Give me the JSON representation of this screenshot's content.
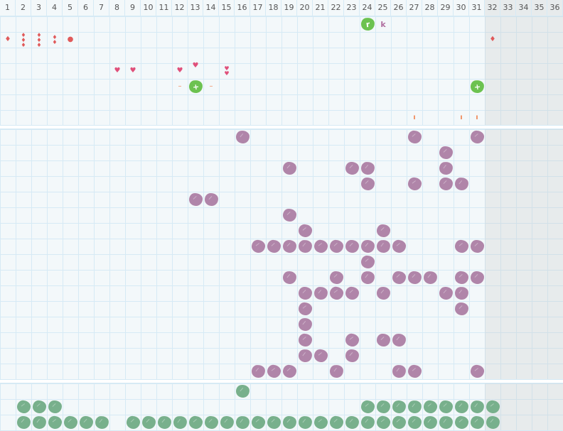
{
  "columns": [
    "1",
    "2",
    "3",
    "4",
    "5",
    "6",
    "7",
    "8",
    "9",
    "10",
    "11",
    "12",
    "13",
    "14",
    "15",
    "16",
    "17",
    "18",
    "19",
    "20",
    "21",
    "22",
    "23",
    "24",
    "25",
    "26",
    "27",
    "28",
    "29",
    "30",
    "31",
    "32",
    "33",
    "34",
    "35",
    "36"
  ],
  "disabled_from_column": 32,
  "colors": {
    "grid": "#d6eaf5",
    "background": "#f3f8fa",
    "purple_block": "#b085a9",
    "green_block": "#78b08c",
    "bright_green": "#6cc250",
    "drop": "#e05a5a",
    "heart": "#e0507a",
    "dash": "#f08a5a",
    "letter": "#b06fa0"
  },
  "top_items": [
    {
      "row": 1,
      "col": 24,
      "type": "green-block",
      "label": "r"
    },
    {
      "row": 1,
      "col": 25,
      "type": "letter",
      "label": "k"
    },
    {
      "row": 2,
      "col": 1,
      "type": "drop",
      "label": "♦"
    },
    {
      "row": 2,
      "col": 2,
      "type": "drops",
      "label": "♦♦♦"
    },
    {
      "row": 2,
      "col": 3,
      "type": "drops",
      "label": "♦♦♦"
    },
    {
      "row": 2,
      "col": 4,
      "type": "drops",
      "label": "♦♦"
    },
    {
      "row": 2,
      "col": 5,
      "type": "dot",
      "label": "●"
    },
    {
      "row": 2,
      "col": 32,
      "type": "drop",
      "label": "♦"
    },
    {
      "row": 4,
      "col": 8,
      "type": "heart",
      "label": "♥"
    },
    {
      "row": 4,
      "col": 9,
      "type": "heart",
      "label": "♥"
    },
    {
      "row": 4,
      "col": 12,
      "type": "heart",
      "label": "♥"
    },
    {
      "row": 4,
      "col": 13,
      "type": "heart",
      "label": "♥"
    },
    {
      "row": 4,
      "col": 15,
      "type": "heart",
      "label": "♥♥"
    },
    {
      "row": 5,
      "col": 12,
      "type": "dash",
      "label": "–"
    },
    {
      "row": 5,
      "col": 13,
      "type": "green-block",
      "label": "+"
    },
    {
      "row": 5,
      "col": 14,
      "type": "dash",
      "label": "–"
    },
    {
      "row": 5,
      "col": 31,
      "type": "green-block",
      "label": "+"
    },
    {
      "row": 7,
      "col": 27,
      "type": "tick",
      "label": "ı"
    },
    {
      "row": 7,
      "col": 30,
      "type": "tick",
      "label": "ı"
    },
    {
      "row": 7,
      "col": 31,
      "type": "tick",
      "label": "ı"
    }
  ],
  "middle_blocks": [
    [
      0,
      16
    ],
    [
      0,
      27
    ],
    [
      0,
      31
    ],
    [
      1,
      29
    ],
    [
      2,
      19
    ],
    [
      2,
      23
    ],
    [
      2,
      24
    ],
    [
      2,
      29
    ],
    [
      3,
      24
    ],
    [
      3,
      27
    ],
    [
      3,
      29
    ],
    [
      3,
      30
    ],
    [
      4,
      13
    ],
    [
      4,
      14
    ],
    [
      5,
      19
    ],
    [
      6,
      20
    ],
    [
      6,
      25
    ],
    [
      7,
      17
    ],
    [
      7,
      18
    ],
    [
      7,
      19
    ],
    [
      7,
      20
    ],
    [
      7,
      21
    ],
    [
      7,
      22
    ],
    [
      7,
      23
    ],
    [
      7,
      24
    ],
    [
      7,
      25
    ],
    [
      7,
      26
    ],
    [
      7,
      30
    ],
    [
      7,
      31
    ],
    [
      8,
      24
    ],
    [
      9,
      19
    ],
    [
      9,
      22
    ],
    [
      9,
      24
    ],
    [
      9,
      26
    ],
    [
      9,
      27
    ],
    [
      9,
      28
    ],
    [
      9,
      30
    ],
    [
      9,
      31
    ],
    [
      10,
      20
    ],
    [
      10,
      21
    ],
    [
      10,
      22
    ],
    [
      10,
      23
    ],
    [
      10,
      25
    ],
    [
      10,
      29
    ],
    [
      10,
      30
    ],
    [
      11,
      20
    ],
    [
      11,
      30
    ],
    [
      12,
      20
    ],
    [
      13,
      20
    ],
    [
      13,
      23
    ],
    [
      13,
      25
    ],
    [
      13,
      26
    ],
    [
      14,
      20
    ],
    [
      14,
      21
    ],
    [
      14,
      23
    ],
    [
      15,
      17
    ],
    [
      15,
      18
    ],
    [
      15,
      19
    ],
    [
      15,
      22
    ],
    [
      15,
      26
    ],
    [
      15,
      27
    ],
    [
      15,
      31
    ]
  ],
  "bottom_blocks": [
    [
      0,
      16
    ],
    [
      1,
      2
    ],
    [
      1,
      3
    ],
    [
      1,
      4
    ],
    [
      1,
      24
    ],
    [
      1,
      25
    ],
    [
      1,
      26
    ],
    [
      1,
      27
    ],
    [
      1,
      28
    ],
    [
      1,
      29
    ],
    [
      1,
      30
    ],
    [
      1,
      31
    ],
    [
      1,
      32
    ],
    [
      2,
      2
    ],
    [
      2,
      3
    ],
    [
      2,
      4
    ],
    [
      2,
      5
    ],
    [
      2,
      6
    ],
    [
      2,
      7
    ],
    [
      2,
      9
    ],
    [
      2,
      10
    ],
    [
      2,
      11
    ],
    [
      2,
      12
    ],
    [
      2,
      13
    ],
    [
      2,
      14
    ],
    [
      2,
      15
    ],
    [
      2,
      16
    ],
    [
      2,
      17
    ],
    [
      2,
      18
    ],
    [
      2,
      19
    ],
    [
      2,
      20
    ],
    [
      2,
      21
    ],
    [
      2,
      22
    ],
    [
      2,
      23
    ],
    [
      2,
      24
    ],
    [
      2,
      25
    ],
    [
      2,
      26
    ],
    [
      2,
      27
    ],
    [
      2,
      28
    ],
    [
      2,
      29
    ],
    [
      2,
      30
    ],
    [
      2,
      31
    ],
    [
      2,
      32
    ]
  ]
}
